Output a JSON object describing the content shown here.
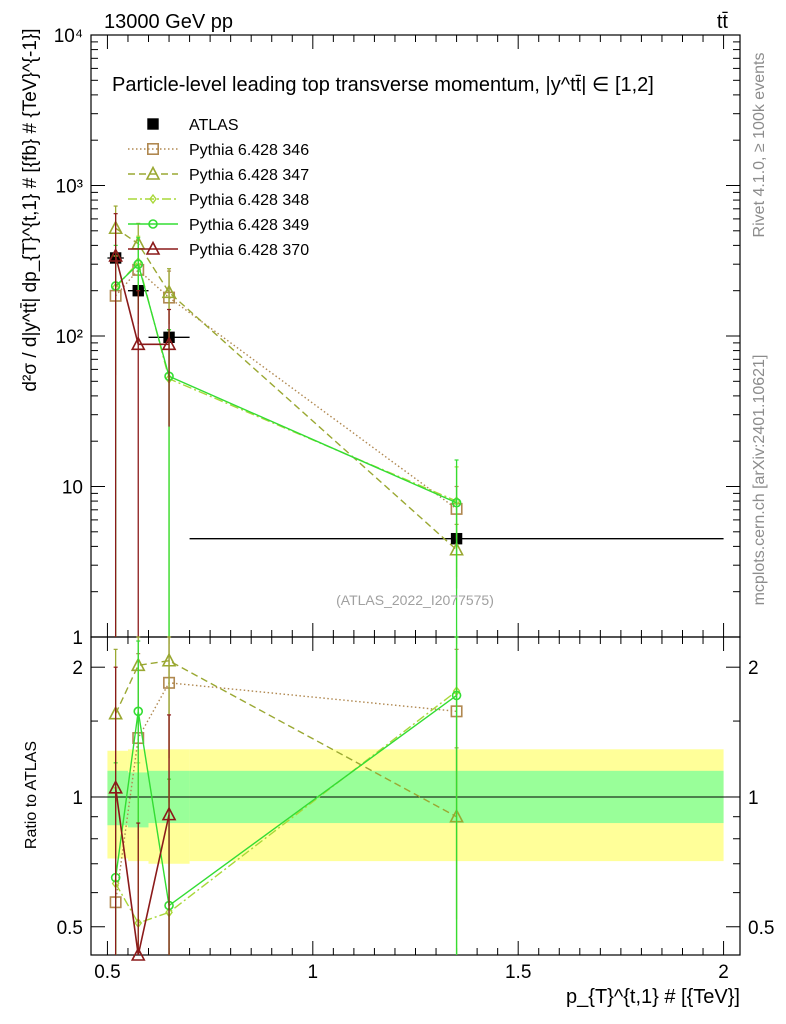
{
  "header": {
    "left": "13000 GeV pp",
    "right": "tt̄"
  },
  "side_labels": {
    "rivet": "Rivet 4.1.0, ≥ 100k events",
    "mcplots": "mcplots.cern.ch [arXiv:2401.10621]"
  },
  "chart_data": [
    {
      "type": "scatter",
      "panel": "main",
      "title": "Particle-level leading top transverse momentum, |y^tt̄| ∈ [1,2]",
      "analysis_id": "(ATLAS_2022_I2077575)",
      "ylabel": "d²σ / d|y^tt̄| dp_{T}^{t,1} # [{fb} # {TeV}^{-1}]",
      "yscale": "log",
      "ylim": [
        1,
        10000
      ],
      "y_tick_labels": [
        "1",
        "10",
        "10²",
        "10³",
        "10⁴"
      ],
      "xlim": [
        0.46,
        2.04
      ],
      "legend_position": "top-left",
      "series": [
        {
          "name": "ATLAS",
          "color": "#000000",
          "marker": "filled-square",
          "line": "none",
          "points": [
            {
              "x": 0.52,
              "y": 330,
              "xerr": 0.02
            },
            {
              "x": 0.575,
              "y": 200,
              "xerr": 0.025
            },
            {
              "x": 0.65,
              "y": 98,
              "xerr": 0.05
            },
            {
              "x": 1.35,
              "y": 4.5,
              "xerr": 0.65
            }
          ]
        },
        {
          "name": "Pythia 6.428 346",
          "color": "#b08850",
          "marker": "open-square",
          "line": "dotted",
          "points": [
            {
              "x": 0.52,
              "y": 185,
              "ylo": 55,
              "yhi": 340
            },
            {
              "x": 0.575,
              "y": 275,
              "ylo": 120,
              "yhi": 430
            },
            {
              "x": 0.65,
              "y": 180,
              "ylo": 95,
              "yhi": 270
            },
            {
              "x": 1.35,
              "y": 7.1,
              "ylo": 4.5,
              "yhi": 10
            }
          ]
        },
        {
          "name": "Pythia 6.428 347",
          "color": "#9aa832",
          "marker": "open-triangle",
          "line": "dashed",
          "points": [
            {
              "x": 0.52,
              "y": 520,
              "ylo": 330,
              "yhi": 730
            },
            {
              "x": 0.575,
              "y": 410,
              "ylo": 250,
              "yhi": 560
            },
            {
              "x": 0.65,
              "y": 195,
              "ylo": 120,
              "yhi": 280
            },
            {
              "x": 1.35,
              "y": 3.8,
              "ylo": 2.1,
              "yhi": 5.6
            }
          ]
        },
        {
          "name": "Pythia 6.428 348",
          "color": "#a8d838",
          "marker": "open-diamond",
          "line": "dash-dot",
          "points": [
            {
              "x": 0.52,
              "y": 210,
              "ylo": 80,
              "yhi": 340
            },
            {
              "x": 0.575,
              "y": 310,
              "ylo": 150,
              "yhi": 460
            },
            {
              "x": 0.65,
              "y": 52,
              "ylo": 1,
              "yhi": 110
            },
            {
              "x": 1.35,
              "y": 8.0,
              "ylo": 2.5,
              "yhi": 13.5
            }
          ]
        },
        {
          "name": "Pythia 6.428 349",
          "color": "#33dd33",
          "marker": "open-circle",
          "line": "solid",
          "points": [
            {
              "x": 0.52,
              "y": 215,
              "ylo": 1,
              "yhi": 400
            },
            {
              "x": 0.575,
              "y": 300,
              "ylo": 150,
              "yhi": 450
            },
            {
              "x": 0.65,
              "y": 54,
              "ylo": 1,
              "yhi": 110
            },
            {
              "x": 1.35,
              "y": 7.8,
              "ylo": 1,
              "yhi": 15
            }
          ]
        },
        {
          "name": "Pythia 6.428 370",
          "color": "#8b1a1a",
          "marker": "open-triangle",
          "line": "solid-steps",
          "points": [
            {
              "x": 0.52,
              "y": 340,
              "ylo": 1,
              "yhi": 650
            },
            {
              "x": 0.575,
              "y": 88,
              "ylo": 1,
              "yhi": 200
            },
            {
              "x": 0.65,
              "y": 88,
              "ylo": 25,
              "yhi": 150
            }
          ]
        }
      ]
    },
    {
      "type": "scatter",
      "panel": "ratio",
      "ylabel": "Ratio to ATLAS",
      "xlabel": "p_{T}^{t,1} # [{TeV}]",
      "yscale": "log",
      "ylim": [
        0.43,
        2.35
      ],
      "y_ticks": [
        0.5,
        1,
        2
      ],
      "x_ticks": [
        0.5,
        1,
        1.5,
        2
      ],
      "xlim": [
        0.46,
        2.04
      ],
      "bands": [
        {
          "name": "total",
          "color": "#ffff99",
          "segments": [
            {
              "x0": 0.5,
              "x1": 0.55,
              "lo": 0.72,
              "hi": 1.28
            },
            {
              "x0": 0.55,
              "x1": 0.6,
              "lo": 0.71,
              "hi": 1.29
            },
            {
              "x0": 0.6,
              "x1": 0.7,
              "lo": 0.7,
              "hi": 1.29
            },
            {
              "x0": 0.7,
              "x1": 2.0,
              "lo": 0.71,
              "hi": 1.29
            }
          ]
        },
        {
          "name": "stat",
          "color": "#99ff99",
          "segments": [
            {
              "x0": 0.5,
              "x1": 0.55,
              "lo": 0.86,
              "hi": 1.15
            },
            {
              "x0": 0.55,
              "x1": 0.6,
              "lo": 0.85,
              "hi": 1.14
            },
            {
              "x0": 0.6,
              "x1": 0.7,
              "lo": 0.87,
              "hi": 1.15
            },
            {
              "x0": 0.7,
              "x1": 2.0,
              "lo": 0.87,
              "hi": 1.15
            }
          ]
        }
      ],
      "series": [
        {
          "name": "Pythia 6.428 346",
          "color": "#b08850",
          "marker": "open-square",
          "line": "dotted",
          "points": [
            {
              "x": 0.52,
              "y": 0.57,
              "ylo": 0.43,
              "yhi": 1.05
            },
            {
              "x": 0.575,
              "y": 1.37,
              "ylo": 0.6,
              "yhi": 2.15
            },
            {
              "x": 0.65,
              "y": 1.84,
              "ylo": 0.97,
              "yhi": 2.35
            },
            {
              "x": 1.35,
              "y": 1.58,
              "ylo": 1.0,
              "yhi": 2.2
            }
          ]
        },
        {
          "name": "Pythia 6.428 347",
          "color": "#9aa832",
          "marker": "open-triangle",
          "line": "dashed",
          "points": [
            {
              "x": 0.52,
              "y": 1.56,
              "ylo": 1.0,
              "yhi": 2.2
            },
            {
              "x": 0.575,
              "y": 2.02,
              "ylo": 1.25,
              "yhi": 2.35
            },
            {
              "x": 0.65,
              "y": 2.07,
              "ylo": 1.23,
              "yhi": 2.35
            },
            {
              "x": 1.35,
              "y": 0.9,
              "ylo": 0.52,
              "yhi": 1.3
            }
          ]
        },
        {
          "name": "Pythia 6.428 348",
          "color": "#a8d838",
          "marker": "open-diamond",
          "line": "dash-dot",
          "points": [
            {
              "x": 0.52,
              "y": 0.63,
              "ylo": 0.43,
              "yhi": 1.05
            },
            {
              "x": 0.575,
              "y": 0.51,
              "ylo": 0.43,
              "yhi": 1.2
            },
            {
              "x": 0.65,
              "y": 0.54,
              "ylo": 0.43,
              "yhi": 1.1
            },
            {
              "x": 1.35,
              "y": 1.76,
              "ylo": 0.43,
              "yhi": 2.35
            }
          ]
        },
        {
          "name": "Pythia 6.428 349",
          "color": "#33dd33",
          "marker": "open-circle",
          "line": "solid",
          "points": [
            {
              "x": 0.52,
              "y": 0.65,
              "ylo": 0.43,
              "yhi": 1.2
            },
            {
              "x": 0.575,
              "y": 1.58,
              "ylo": 0.8,
              "yhi": 2.3
            },
            {
              "x": 0.65,
              "y": 0.56,
              "ylo": 0.43,
              "yhi": 1.1
            },
            {
              "x": 1.35,
              "y": 1.72,
              "ylo": 0.43,
              "yhi": 2.35
            }
          ]
        },
        {
          "name": "Pythia 6.428 370",
          "color": "#8b1a1a",
          "marker": "open-triangle",
          "line": "solid-steps",
          "points": [
            {
              "x": 0.52,
              "y": 1.05,
              "ylo": 0.43,
              "yhi": 2.0
            },
            {
              "x": 0.575,
              "y": 0.4,
              "ylo": 0.43,
              "yhi": 0.87
            },
            {
              "x": 0.65,
              "y": 0.91,
              "ylo": 0.43,
              "yhi": 1.55
            }
          ]
        }
      ]
    }
  ]
}
